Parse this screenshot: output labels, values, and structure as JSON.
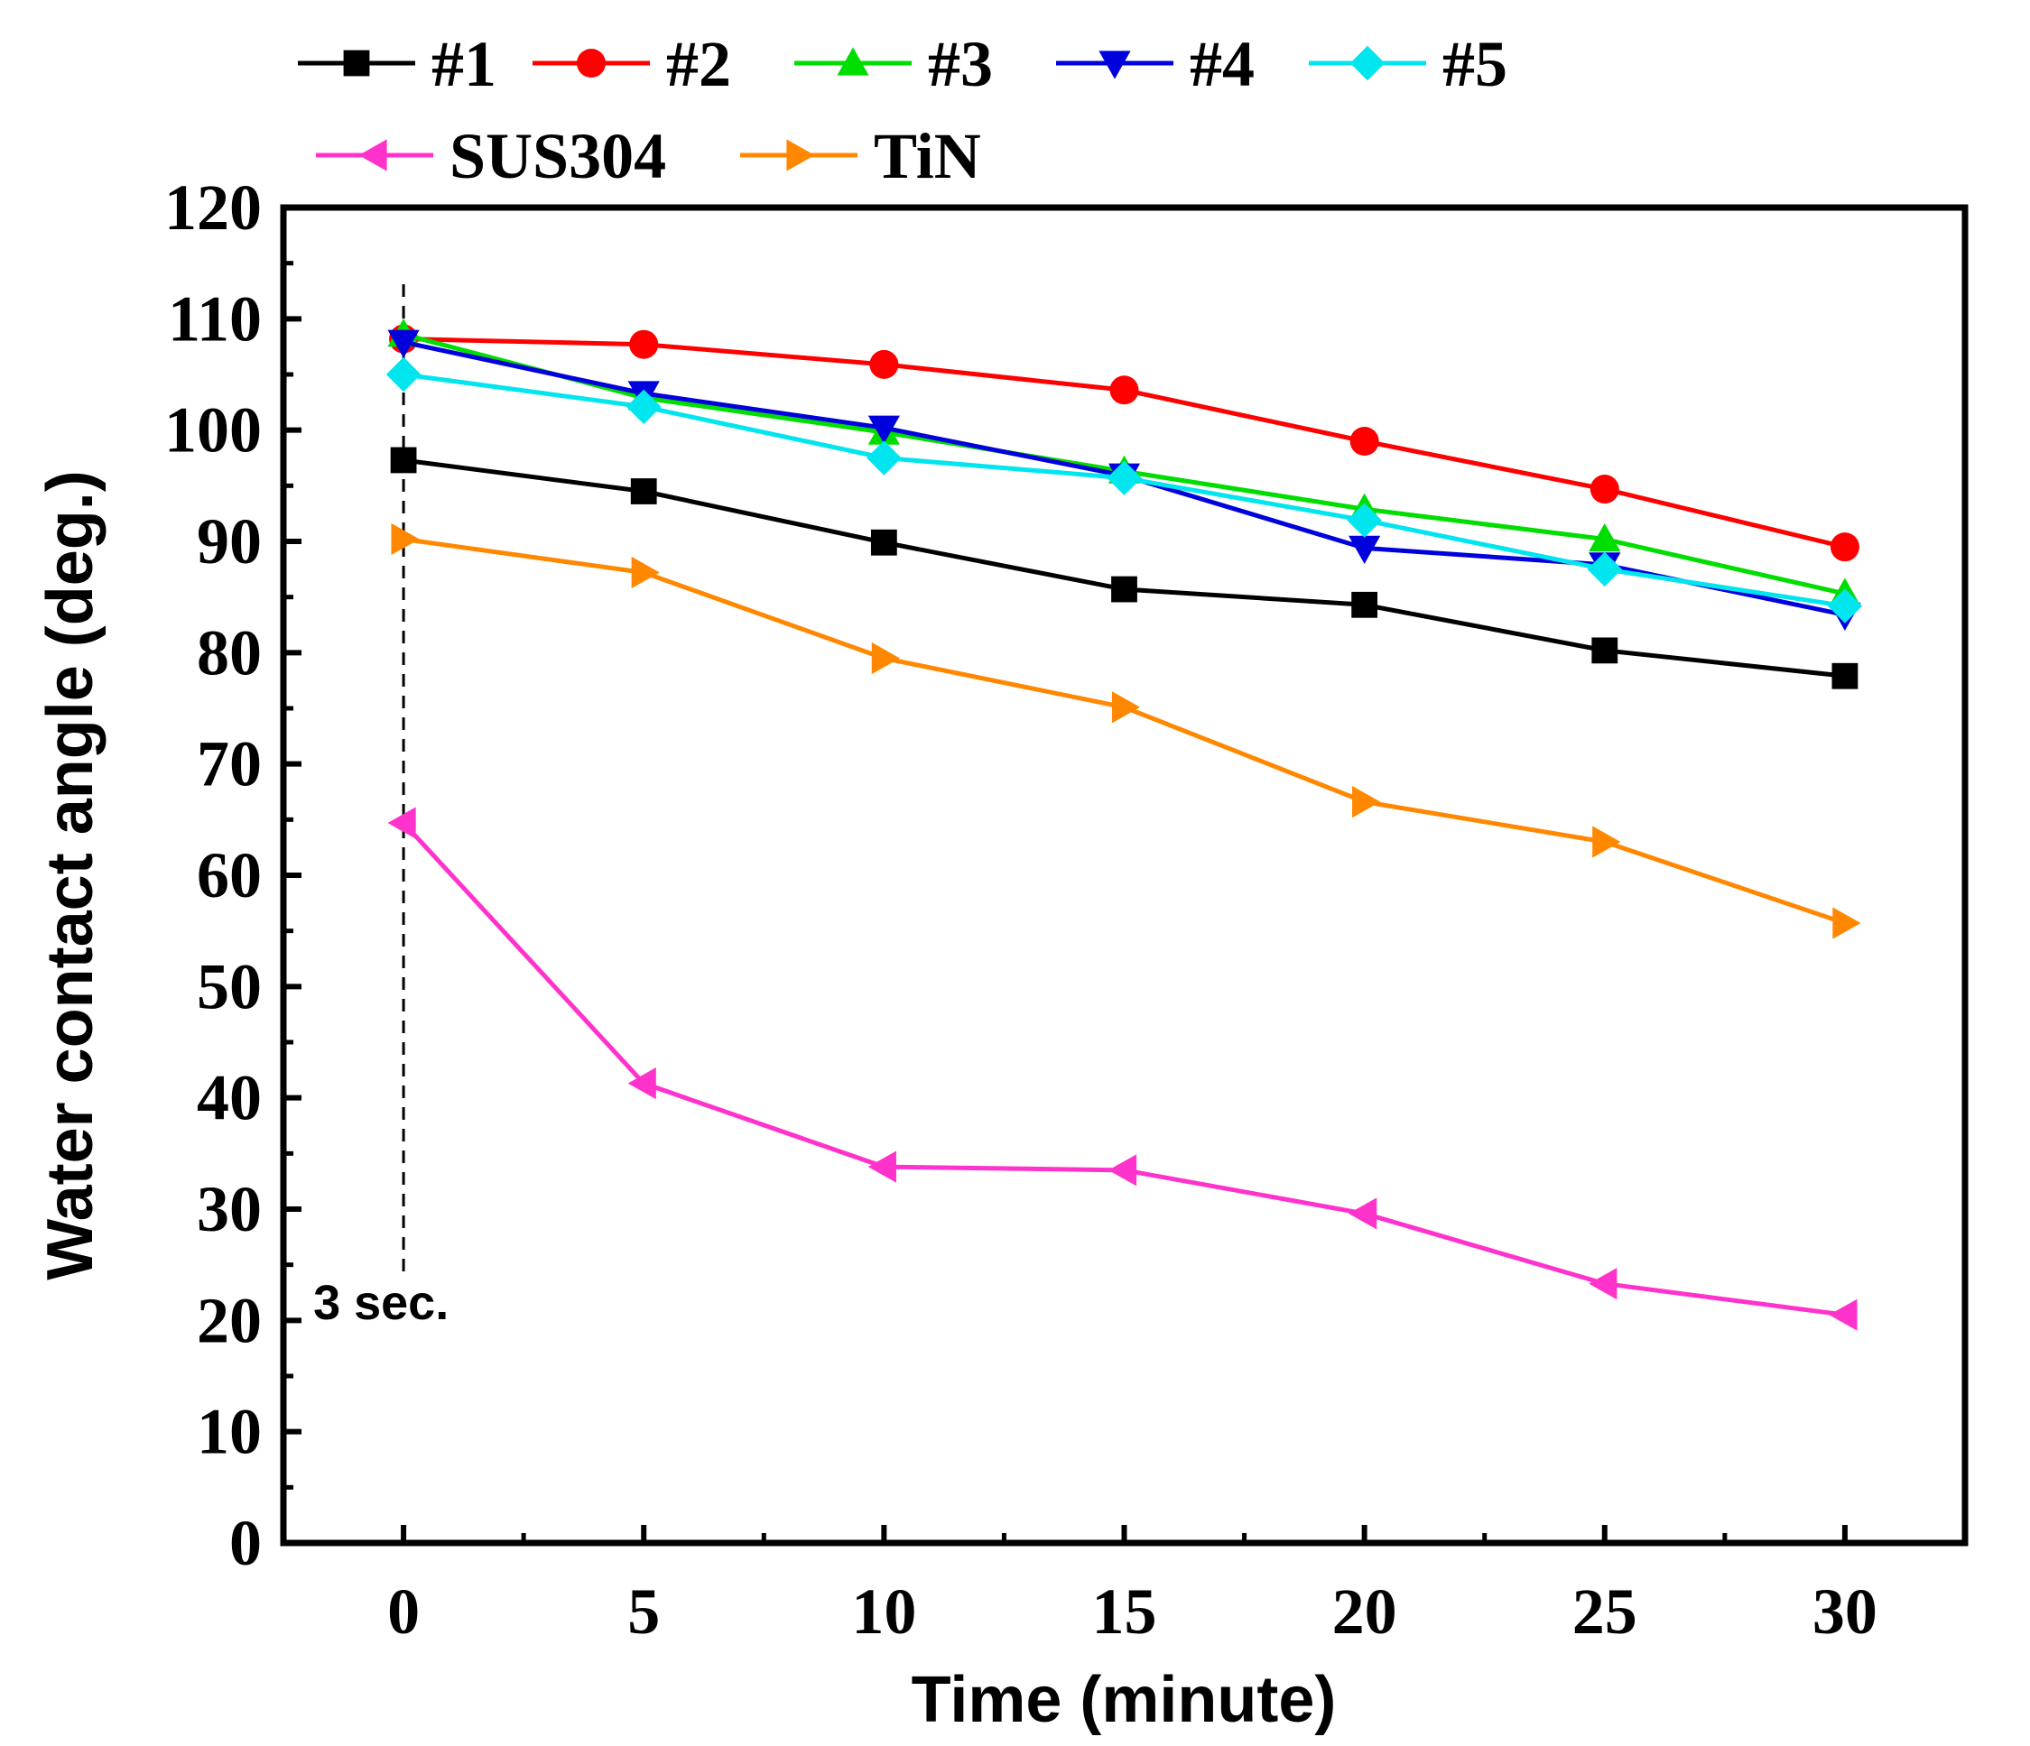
{
  "chart_data": {
    "type": "line",
    "title": "",
    "xlabel": "Time (minute)",
    "ylabel": "Water contact angle (deg.)",
    "x": [
      0,
      5,
      10,
      15,
      20,
      25,
      30
    ],
    "xticks": [
      0,
      5,
      10,
      15,
      20,
      25,
      30
    ],
    "yticks": [
      0,
      10,
      20,
      30,
      40,
      50,
      60,
      70,
      80,
      90,
      100,
      110,
      120
    ],
    "xlim": [
      -2.5,
      32.5
    ],
    "ylim": [
      0,
      120
    ],
    "grid": false,
    "legend_position": "top",
    "annotation": {
      "text": "3 sec.",
      "x": 0
    },
    "series": [
      {
        "name": "#1",
        "color": "#000000",
        "marker": "square",
        "values": [
          97.3,
          94.5,
          89.9,
          85.7,
          84.3,
          80.2,
          77.9
        ]
      },
      {
        "name": "#2",
        "color": "#ff0000",
        "marker": "circle",
        "values": [
          108.2,
          107.7,
          105.9,
          103.6,
          99.0,
          94.7,
          89.5
        ]
      },
      {
        "name": "#3",
        "color": "#00dd00",
        "marker": "triangle-up",
        "values": [
          108.6,
          102.9,
          99.8,
          96.3,
          92.9,
          90.2,
          85.3
        ]
      },
      {
        "name": "#4",
        "color": "#0000dd",
        "marker": "triangle-down",
        "values": [
          107.9,
          103.3,
          100.2,
          95.9,
          89.4,
          87.9,
          83.4
        ]
      },
      {
        "name": "#5",
        "color": "#00e5ee",
        "marker": "diamond",
        "values": [
          105.0,
          102.1,
          97.5,
          95.7,
          91.9,
          87.5,
          84.2
        ]
      },
      {
        "name": "SUS304",
        "color": "#ff33cc",
        "marker": "triangle-left",
        "values": [
          64.7,
          41.3,
          33.8,
          33.5,
          29.6,
          23.3,
          20.5
        ]
      },
      {
        "name": "TiN",
        "color": "#ff8800",
        "marker": "triangle-right",
        "values": [
          90.2,
          87.2,
          79.5,
          75.1,
          66.6,
          63.0,
          55.7
        ]
      }
    ]
  }
}
